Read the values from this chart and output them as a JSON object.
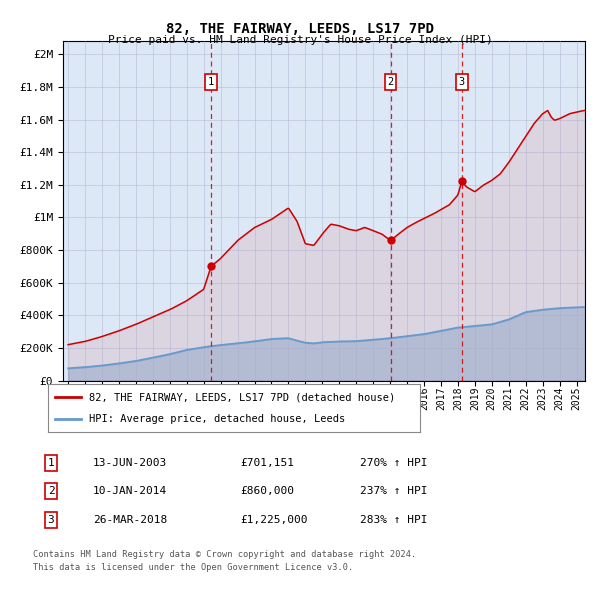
{
  "title1": "82, THE FAIRWAY, LEEDS, LS17 7PD",
  "title2": "Price paid vs. HM Land Registry's House Price Index (HPI)",
  "legend1": "82, THE FAIRWAY, LEEDS, LS17 7PD (detached house)",
  "legend2": "HPI: Average price, detached house, Leeds",
  "footer1": "Contains HM Land Registry data © Crown copyright and database right 2024.",
  "footer2": "This data is licensed under the Open Government Licence v3.0.",
  "sale_dates": [
    "13-JUN-2003",
    "10-JAN-2014",
    "26-MAR-2018"
  ],
  "sale_prices": [
    701151,
    860000,
    1225000
  ],
  "sale_hpi_pct": [
    "270% ↑ HPI",
    "237% ↑ HPI",
    "283% ↑ HPI"
  ],
  "sale_labels": [
    "1",
    "2",
    "3"
  ],
  "vline_years": [
    2003.44,
    2014.03,
    2018.23
  ],
  "bg_color": "#dce8f5",
  "red_color": "#cc0000",
  "blue_color": "#6699cc",
  "ylim_max": 2000000,
  "xlim_start": 1994.7,
  "xlim_end": 2025.5,
  "table_data": [
    [
      "1",
      "13-JUN-2003",
      "£701,151",
      "270% ↑ HPI"
    ],
    [
      "2",
      "10-JAN-2014",
      "£860,000",
      "237% ↑ HPI"
    ],
    [
      "3",
      "26-MAR-2018",
      "£1,225,000",
      "283% ↑ HPI"
    ]
  ]
}
